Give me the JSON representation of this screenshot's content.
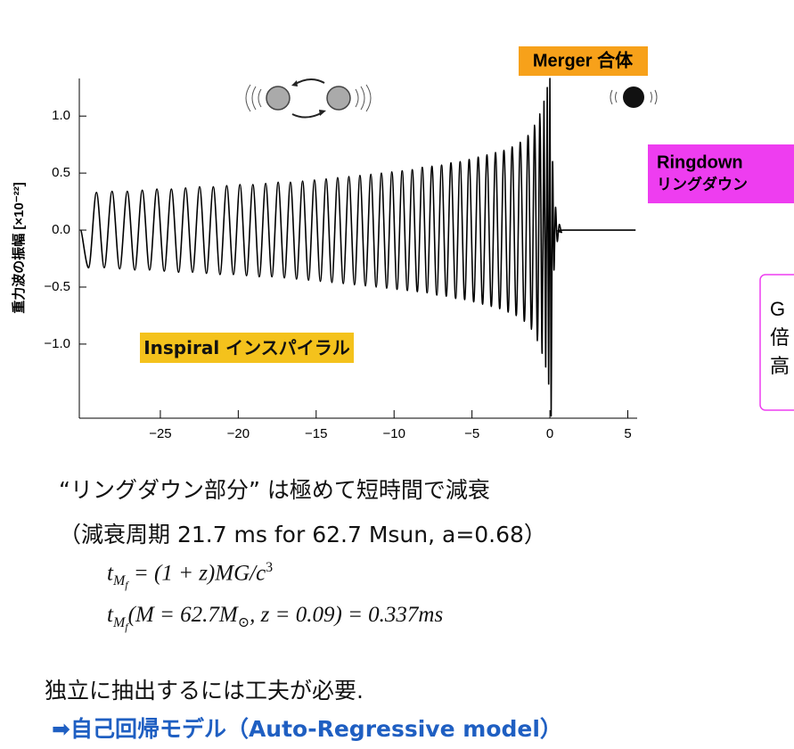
{
  "chart_data": {
    "type": "line",
    "ylabel": "重力波の振幅 [×10⁻²²]",
    "color": "#000000",
    "xlim": [
      -30.2,
      5.6
    ],
    "ylim": [
      -1.65,
      1.33
    ],
    "xticks": [
      {
        "value": -25,
        "label": "−25"
      },
      {
        "value": -20,
        "label": "−20"
      },
      {
        "value": -15,
        "label": "−15"
      },
      {
        "value": -10,
        "label": "−10"
      },
      {
        "value": -5,
        "label": "−5"
      },
      0,
      5
    ],
    "yticks": [
      {
        "value": 1.0,
        "label": "1.0"
      },
      {
        "value": 0.5,
        "label": "0.5"
      },
      {
        "value": 0.0,
        "label": "0.0"
      },
      {
        "value": -0.5,
        "label": "−0.5"
      },
      {
        "value": -1.0,
        "label": "−1.0"
      }
    ],
    "x": [
      -30.1,
      -29.6,
      -29.1,
      -28.6,
      -28.1,
      -27.61,
      -27.12,
      -26.64,
      -26.16,
      -25.69,
      -25.22,
      -24.75,
      -24.29,
      -23.83,
      -23.38,
      -22.93,
      -22.48,
      -22.04,
      -21.6,
      -21.17,
      -20.74,
      -20.31,
      -19.89,
      -19.47,
      -19.06,
      -18.65,
      -18.24,
      -17.84,
      -17.44,
      -17.04,
      -16.65,
      -16.26,
      -15.87,
      -15.49,
      -15.11,
      -14.73,
      -14.36,
      -13.99,
      -13.62,
      -13.26,
      -12.9,
      -12.54,
      -12.19,
      -11.84,
      -11.49,
      -11.15,
      -10.81,
      -10.47,
      -10.14,
      -9.81,
      -9.48,
      -9.15,
      -8.83,
      -8.51,
      -8.19,
      -7.88,
      -7.57,
      -7.26,
      -6.95,
      -6.65,
      -6.35,
      -6.05,
      -5.76,
      -5.47,
      -5.18,
      -4.89,
      -4.6,
      -4.32,
      -4.04,
      -3.76,
      -3.49,
      -3.22,
      -2.95,
      -2.68,
      -2.42,
      -2.16,
      -1.9,
      -1.64,
      -1.4,
      -1.18,
      -0.98,
      -0.8,
      -0.64,
      -0.5,
      -0.38,
      -0.27,
      -0.17,
      -0.08,
      0.0,
      0.08,
      0.17,
      0.26,
      0.36,
      0.47,
      0.6,
      0.75,
      0.9,
      5.5
    ],
    "values": [
      0.0,
      -0.33,
      0.33,
      -0.33,
      0.34,
      -0.34,
      0.34,
      -0.35,
      0.35,
      -0.35,
      0.36,
      -0.36,
      0.36,
      -0.37,
      0.37,
      -0.37,
      0.38,
      -0.38,
      0.38,
      -0.39,
      0.39,
      -0.39,
      0.4,
      -0.4,
      0.4,
      -0.41,
      0.41,
      -0.41,
      0.42,
      -0.42,
      0.42,
      -0.43,
      0.43,
      -0.44,
      0.44,
      -0.45,
      0.45,
      -0.46,
      0.46,
      -0.47,
      0.47,
      -0.48,
      0.48,
      -0.49,
      0.49,
      -0.5,
      0.5,
      -0.51,
      0.51,
      -0.52,
      0.52,
      -0.53,
      0.53,
      -0.54,
      0.55,
      -0.55,
      0.56,
      -0.57,
      0.57,
      -0.58,
      0.59,
      -0.6,
      0.6,
      -0.61,
      0.62,
      -0.63,
      0.64,
      -0.65,
      0.66,
      -0.67,
      0.68,
      -0.69,
      0.7,
      -0.72,
      0.73,
      -0.75,
      0.77,
      -0.8,
      0.83,
      -0.87,
      0.92,
      -0.97,
      1.02,
      -1.08,
      1.13,
      -1.2,
      1.25,
      -1.35,
      1.33,
      -1.63,
      0.6,
      -0.35,
      0.2,
      -0.1,
      0.05,
      -0.02,
      0.0,
      0.0
    ],
    "annotations": [
      {
        "text": "Merger  合体",
        "color": "#f7a11a"
      },
      {
        "text": "Ringdown",
        "text2": "リングダウン",
        "color": "#ee3df0"
      },
      {
        "text": "Inspiral  インスパイラル",
        "color": "#f4c21c"
      }
    ]
  },
  "side_note": {
    "lines": [
      "G",
      "倍",
      "高"
    ]
  },
  "body": {
    "line1": "“リングダウン部分” は極めて短時間で減衰",
    "line2": "（減衰周期 21.7 ms for 62.7 Msun, a=0.68）",
    "formula1": {
      "base": "t",
      "sub": "M",
      "subsub": "f",
      "rest": " = (1 + z)MG/c",
      "sup": "3"
    },
    "formula2": {
      "base": "t",
      "sub": "M",
      "subsub": "f",
      "rest": "(M = 62.7M",
      "sun": "⊙",
      "rest2": ", z = 0.09) = 0.337ms"
    },
    "line3": "独立に抽出するには工夫が必要.",
    "line4": "➡自己回帰モデル（Auto-Regressive model）"
  }
}
